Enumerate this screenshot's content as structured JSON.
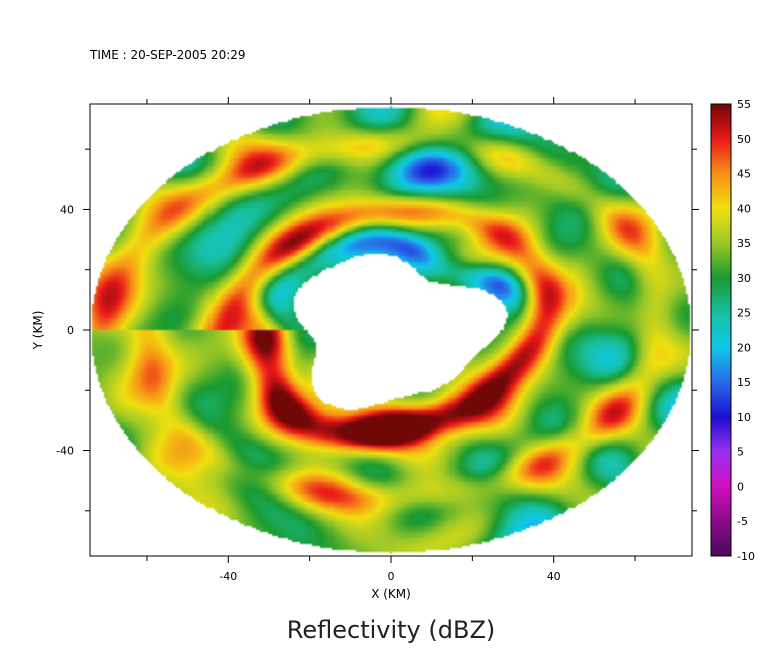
{
  "header": {
    "time_label": "TIME : 20-SEP-2005 20:29"
  },
  "footer": {
    "title": "Reflectivity (dBZ)"
  },
  "chart_data": {
    "type": "heatmap",
    "title": "Reflectivity (dBZ)",
    "xlabel": "X (KM)",
    "ylabel": "Y (KM)",
    "xlim": [
      -74,
      74
    ],
    "ylim": [
      -75,
      75
    ],
    "x_ticks": [
      -40,
      0,
      40
    ],
    "y_ticks": [
      40,
      0,
      -40
    ],
    "domain_radius_km": 74,
    "eye_radius_km": 24,
    "colorbar": {
      "label_values": [
        55,
        50,
        45,
        40,
        35,
        30,
        25,
        20,
        15,
        10,
        5,
        0,
        -5,
        -10
      ],
      "range": [
        -10,
        55
      ],
      "colors": [
        [
          -10,
          "#4a0a5a"
        ],
        [
          -5,
          "#8a0a8a"
        ],
        [
          0,
          "#d010c0"
        ],
        [
          5,
          "#9a30f0"
        ],
        [
          10,
          "#1a10d0"
        ],
        [
          15,
          "#2a6ae8"
        ],
        [
          20,
          "#10c8e8"
        ],
        [
          25,
          "#18c0a0"
        ],
        [
          30,
          "#1a9a30"
        ],
        [
          35,
          "#9cc828"
        ],
        [
          40,
          "#f0e010"
        ],
        [
          45,
          "#f89018"
        ],
        [
          50,
          "#e81818"
        ],
        [
          55,
          "#700808"
        ]
      ]
    },
    "field": {
      "rainband_spiral": [
        {
          "radius_km": 36,
          "peak_dbz": 49
        },
        {
          "radius_km": 62,
          "peak_dbz": 44
        }
      ],
      "eyewall_max_dbz": 50,
      "background_dbz": 31
    }
  }
}
